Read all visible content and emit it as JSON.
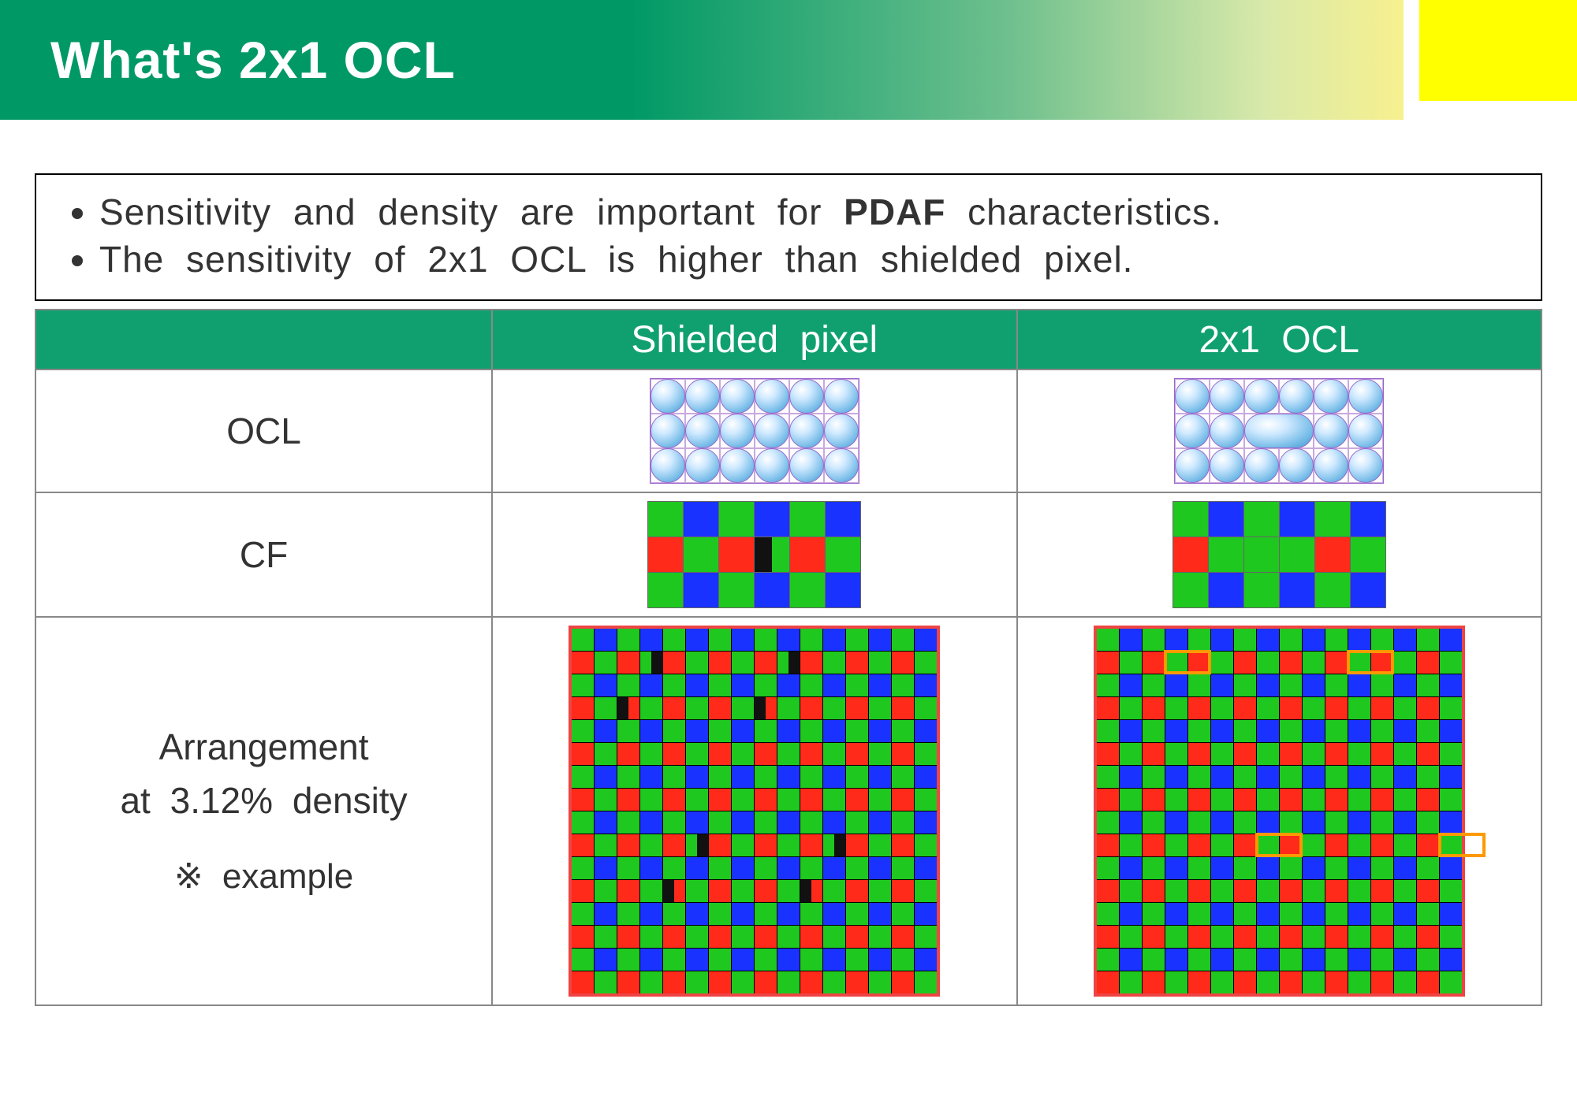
{
  "header": {
    "title": "What's 2x1 OCL"
  },
  "bullets": [
    {
      "pre": "Sensitivity and density are important for ",
      "bold": "PDAF",
      "post": " characteristics."
    },
    {
      "pre": "The sensitivity of 2x1 OCL is higher than shielded pixel.",
      "bold": "",
      "post": ""
    }
  ],
  "table": {
    "columns": [
      "",
      "Shielded pixel",
      "2x1 OCL"
    ],
    "rows": {
      "ocl": {
        "label": "OCL"
      },
      "cf": {
        "label": "CF"
      },
      "arr": {
        "label1": "Arrangement",
        "label2": "at  3.12% density",
        "note": "※ example"
      }
    }
  },
  "ocl_diagram": {
    "cols": 6,
    "rows": 3,
    "shielded_wide_cells": [],
    "ocl_wide_cells": [
      [
        1,
        2
      ]
    ]
  },
  "cf_small": {
    "cols": 6,
    "rows": 3,
    "shielded": {
      "pattern": [
        [
          "g",
          "b",
          "g",
          "b",
          "g",
          "b"
        ],
        [
          "r",
          "g",
          "r",
          "g",
          "r",
          "g"
        ],
        [
          "g",
          "b",
          "g",
          "b",
          "g",
          "b"
        ]
      ],
      "shield": {
        "row": 1,
        "col": 3,
        "side": "left"
      }
    },
    "ocl": {
      "pattern": [
        [
          "g",
          "b",
          "g",
          "b",
          "g",
          "b"
        ],
        [
          "r",
          "g",
          "g",
          "g",
          "r",
          "g"
        ],
        [
          "g",
          "b",
          "g",
          "b",
          "g",
          "b"
        ]
      ]
    }
  },
  "bayer": {
    "size": 16,
    "colors": {
      "g": "#1fc81f",
      "r": "#ff2a1a",
      "b": "#1a32ff",
      "k": "#111111"
    },
    "shielded_marks": [
      {
        "row": 1,
        "col": 3,
        "side": "right"
      },
      {
        "row": 1,
        "col": 9,
        "side": "right"
      },
      {
        "row": 3,
        "col": 2,
        "side": "left"
      },
      {
        "row": 3,
        "col": 8,
        "side": "left"
      },
      {
        "row": 9,
        "col": 5,
        "side": "right"
      },
      {
        "row": 9,
        "col": 11,
        "side": "right"
      },
      {
        "row": 11,
        "col": 4,
        "side": "left"
      },
      {
        "row": 11,
        "col": 10,
        "side": "left"
      }
    ],
    "ocl_boxes": [
      {
        "row": 1,
        "col": 3
      },
      {
        "row": 1,
        "col": 11
      },
      {
        "row": 9,
        "col": 7
      },
      {
        "row": 9,
        "col": 15
      }
    ],
    "highlight_color": "#ff9900",
    "border_color": "#ff2a1a"
  }
}
